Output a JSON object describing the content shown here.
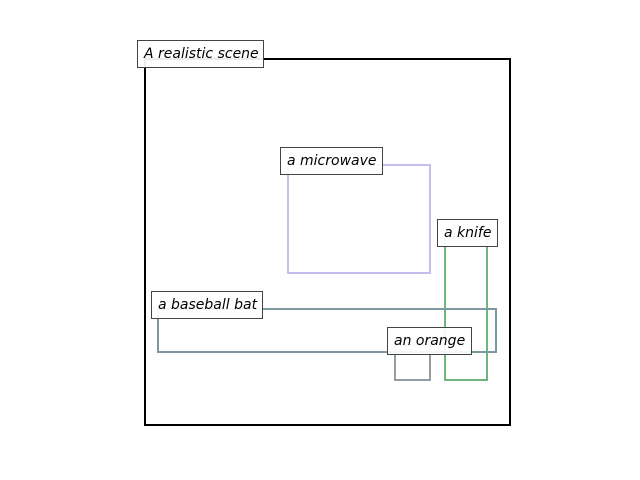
{
  "scene": {
    "label": "A realistic scene",
    "border_color": "#000000"
  },
  "objects": [
    {
      "id": "microwave",
      "label": "a microwave",
      "color": "#c6bdee"
    },
    {
      "id": "knife",
      "label": "a knife",
      "color": "#6db77a"
    },
    {
      "id": "baseball_bat",
      "label": "a baseball bat",
      "color": "#7b999e"
    },
    {
      "id": "orange",
      "label": "an orange",
      "color": "#959da4"
    }
  ]
}
